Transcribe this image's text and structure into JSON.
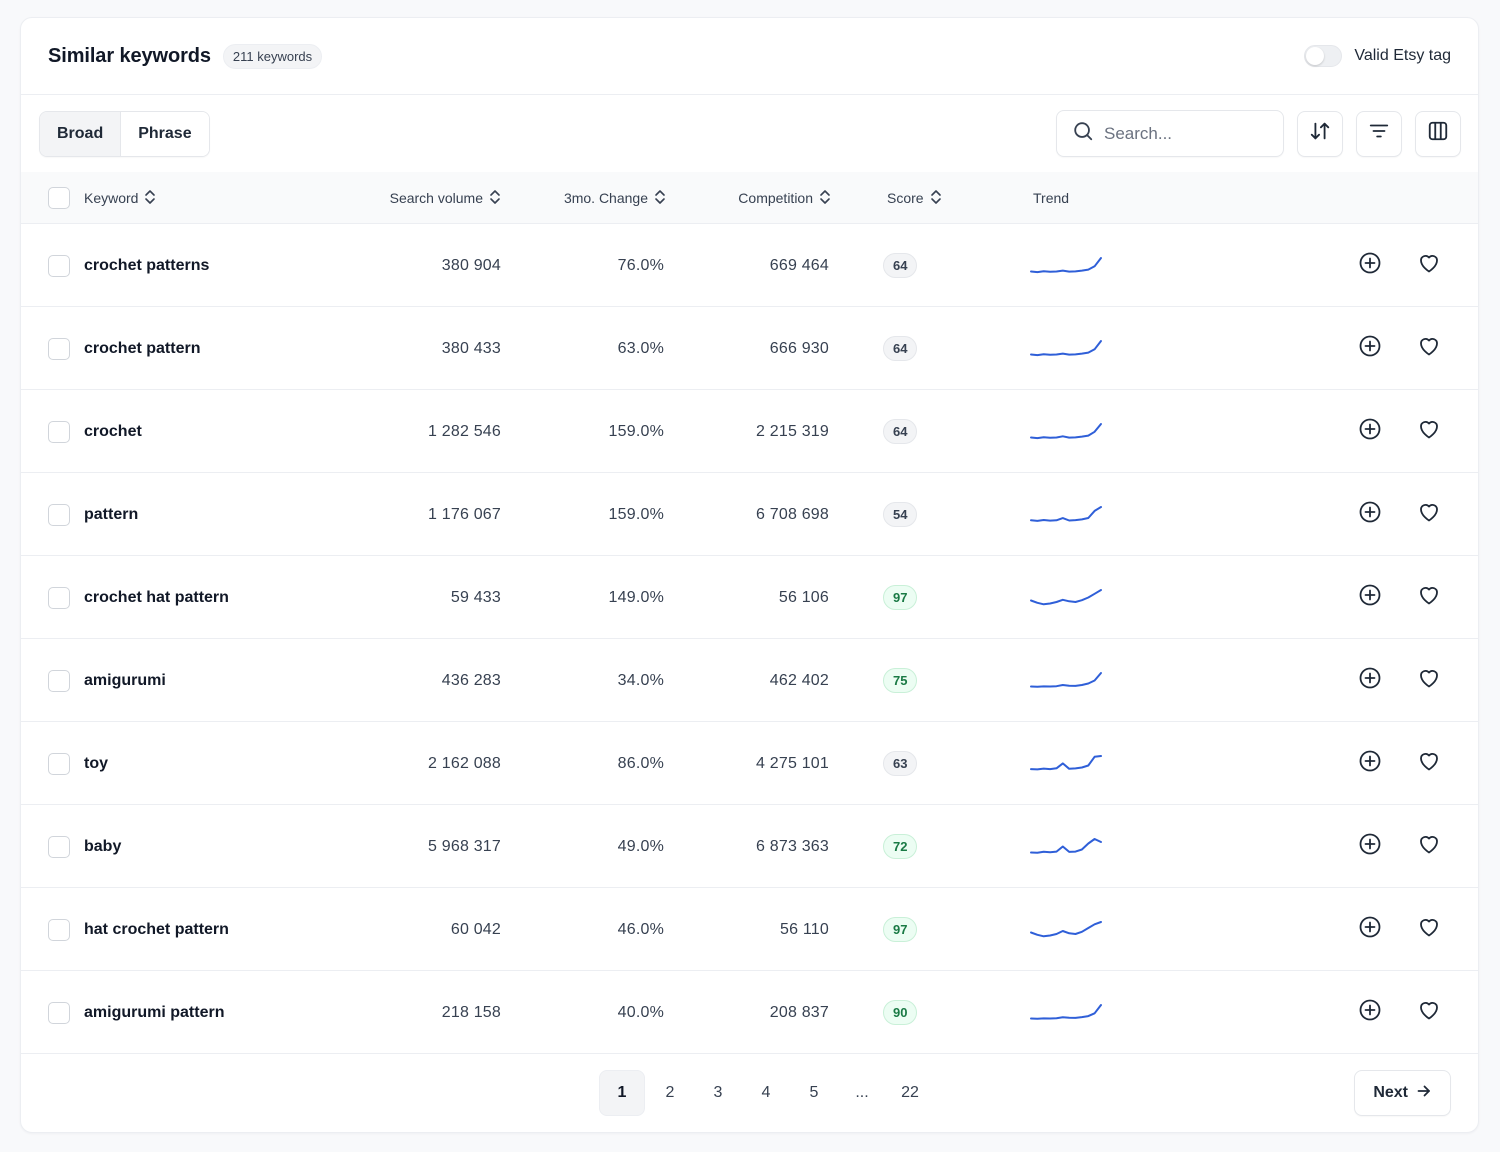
{
  "header": {
    "title": "Similar keywords",
    "count": "211 keywords",
    "toggle_label": "Valid Etsy tag",
    "toggle_on": false
  },
  "toolbar": {
    "match_types": [
      {
        "label": "Broad",
        "active": true
      },
      {
        "label": "Phrase",
        "active": false
      }
    ],
    "search_placeholder": "Search...",
    "icons": [
      "sort-icon",
      "filter-icon",
      "columns-icon"
    ]
  },
  "table": {
    "columns": {
      "keyword": "Keyword",
      "search_volume": "Search volume",
      "change": "3mo. Change",
      "competition": "Competition",
      "score": "Score",
      "trend": "Trend"
    },
    "rows": [
      {
        "keyword": "crochet patterns",
        "volume": "380 904",
        "change": "76.0%",
        "competition": "669 464",
        "score": "64",
        "score_good": false,
        "trend": [
          3,
          2.6,
          3.2,
          2.8,
          3,
          3.6,
          2.9,
          3.1,
          3.6,
          4.3,
          6.5,
          12
        ]
      },
      {
        "keyword": "crochet pattern",
        "volume": "380 433",
        "change": "63.0%",
        "competition": "666 930",
        "score": "64",
        "score_good": false,
        "trend": [
          3,
          2.6,
          3.2,
          2.8,
          3,
          3.6,
          2.9,
          3.1,
          3.6,
          4.3,
          6.5,
          12
        ]
      },
      {
        "keyword": "crochet",
        "volume": "1 282 546",
        "change": "159.0%",
        "competition": "2 215 319",
        "score": "64",
        "score_good": false,
        "trend": [
          3,
          2.6,
          3.2,
          2.8,
          3,
          3.8,
          2.9,
          3.1,
          3.6,
          4.3,
          6.8,
          12
        ]
      },
      {
        "keyword": "pattern",
        "volume": "1 176 067",
        "change": "159.0%",
        "competition": "6 708 698",
        "score": "54",
        "score_good": false,
        "trend": [
          3,
          2.6,
          3.2,
          2.8,
          3,
          4.4,
          2.9,
          3.1,
          3.6,
          4.5,
          9,
          11.5
        ]
      },
      {
        "keyword": "crochet hat pattern",
        "volume": "59 433",
        "change": "149.0%",
        "competition": "56 106",
        "score": "97",
        "score_good": true,
        "trend": [
          5,
          3.5,
          2.5,
          3,
          4,
          5.5,
          4.5,
          4,
          5.2,
          7,
          9.5,
          12
        ]
      },
      {
        "keyword": "amigurumi",
        "volume": "436 283",
        "change": "34.0%",
        "competition": "462 402",
        "score": "75",
        "score_good": true,
        "trend": [
          3,
          2.8,
          3.1,
          3,
          3.2,
          4,
          3.5,
          3.4,
          4,
          5,
          7,
          12
        ]
      },
      {
        "keyword": "toy",
        "volume": "2 162 088",
        "change": "86.0%",
        "competition": "4 275 101",
        "score": "63",
        "score_good": false,
        "trend": [
          3,
          2.8,
          3.3,
          3,
          3.5,
          6.5,
          3.2,
          3.4,
          4,
          5.2,
          10.5,
          11
        ]
      },
      {
        "keyword": "baby",
        "volume": "5 968 317",
        "change": "49.0%",
        "competition": "6 873 363",
        "score": "72",
        "score_good": true,
        "trend": [
          3,
          2.8,
          3.5,
          3.2,
          3.6,
          7,
          3.4,
          3.6,
          5,
          9,
          12,
          10
        ]
      },
      {
        "keyword": "hat crochet pattern",
        "volume": "60 042",
        "change": "46.0%",
        "competition": "56 110",
        "score": "97",
        "score_good": true,
        "trend": [
          5,
          3.5,
          2.5,
          3,
          4,
          6,
          4.5,
          4,
          5.5,
          8,
          10.5,
          12
        ]
      },
      {
        "keyword": "amigurumi pattern",
        "volume": "218 158",
        "change": "40.0%",
        "competition": "208 837",
        "score": "90",
        "score_good": true,
        "trend": [
          3,
          2.8,
          3.1,
          3,
          3.2,
          3.8,
          3.5,
          3.4,
          3.9,
          4.6,
          6.5,
          12
        ]
      }
    ]
  },
  "pagination": {
    "pages": [
      "1",
      "2",
      "3",
      "4",
      "5",
      "...",
      "22"
    ],
    "active_page": "1",
    "next_label": "Next"
  },
  "colors": {
    "trend_line": "#2f5fd8",
    "score_good_bg": "#ecfdf3",
    "score_good_text": "#1a7a45"
  }
}
